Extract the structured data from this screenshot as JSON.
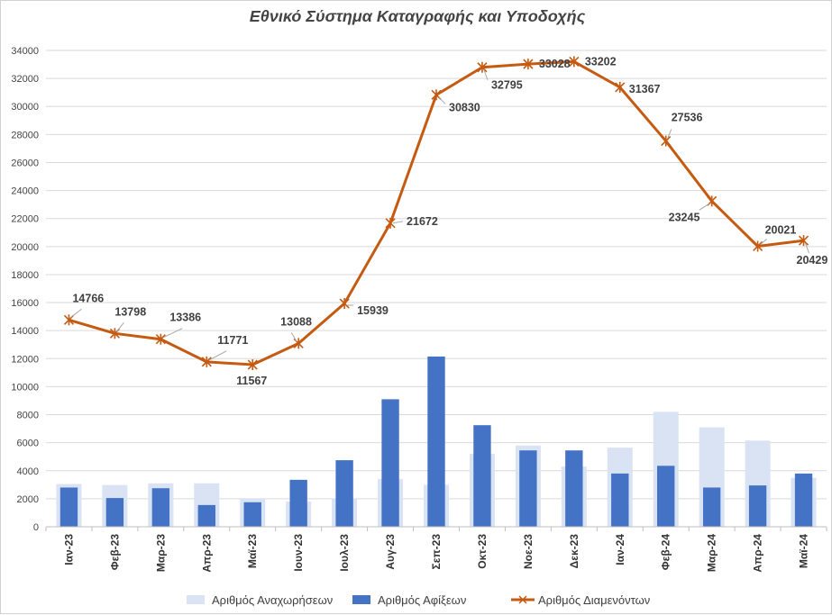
{
  "chart_data": {
    "type": "bar",
    "title": "Εθνικό Σύστημα Καταγραφής και Υποδοχής",
    "categories": [
      "Ιαν-23",
      "Φεβ-23",
      "Μαρ-23",
      "Απρ-23",
      "Μαϊ-23",
      "Ιουν-23",
      "Ιουλ-23",
      "Αυγ-23",
      "Σεπ-23",
      "Οκτ-23",
      "Νοε-23",
      "Δεκ-23",
      "Ιαν-24",
      "Φεβ-24",
      "Μαρ-24",
      "Απρ-24",
      "Μαϊ-24"
    ],
    "ylim": [
      0,
      34000
    ],
    "ytick_step": 2000,
    "yticks": [
      "0",
      "2000",
      "4000",
      "6000",
      "8000",
      "10000",
      "12000",
      "14000",
      "16000",
      "18000",
      "20000",
      "22000",
      "24000",
      "26000",
      "28000",
      "30000",
      "32000",
      "34000"
    ],
    "grid": true,
    "legend_position": "bottom",
    "series": [
      {
        "name": "Αριθμός Αναχωρήσεων",
        "kind": "bar",
        "color": "#d9e3f4",
        "values": [
          3050,
          2980,
          3100,
          3100,
          2000,
          1800,
          2000,
          3400,
          3000,
          5200,
          5800,
          4300,
          5650,
          8200,
          7100,
          6150,
          3500
        ]
      },
      {
        "name": "Αριθμός Αφίξεων",
        "kind": "bar",
        "color": "#4472c4",
        "values": [
          2800,
          2050,
          2750,
          1550,
          1750,
          3350,
          4750,
          9100,
          12150,
          7250,
          5450,
          5450,
          3800,
          4350,
          2800,
          2950,
          3800
        ]
      },
      {
        "name": "Αριθμός Διαμενόντων",
        "kind": "line",
        "color": "#c55a11",
        "marker": "asterisk",
        "values": [
          14766,
          13798,
          13386,
          11771,
          11567,
          13088,
          15939,
          21672,
          30830,
          32795,
          33028,
          33202,
          31367,
          27536,
          23245,
          20021,
          20429
        ],
        "labels": [
          "14766",
          "13798",
          "13386",
          "11771",
          "11567",
          "13088",
          "15939",
          "21672",
          "30830",
          "32795",
          "33028",
          "33202",
          "31367",
          "27536",
          "23245",
          "20021",
          "20429"
        ]
      }
    ]
  }
}
